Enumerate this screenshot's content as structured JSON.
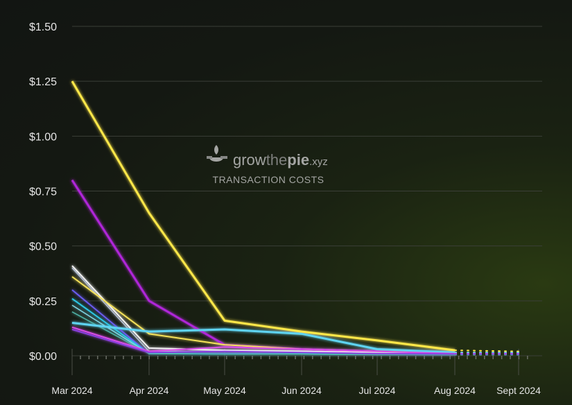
{
  "chart_data": {
    "type": "line",
    "title": "",
    "xlabel": "",
    "ylabel": "",
    "y_tick_labels": [
      "$0.00",
      "$0.25",
      "$0.50",
      "$0.75",
      "$1.00",
      "$1.25",
      "$1.50"
    ],
    "y_ticks": [
      0,
      0.25,
      0.5,
      0.75,
      1.0,
      1.25,
      1.5
    ],
    "ylim": [
      0,
      1.5
    ],
    "categories": [
      "Mar 2024",
      "Apr 2024",
      "May 2024",
      "Jun 2024",
      "Jul 2024",
      "Aug 2024",
      "Sept 2024"
    ],
    "grid": true,
    "series": [
      {
        "color": "#ffe84a",
        "values": [
          1.25,
          0.65,
          0.16,
          0.11,
          0.07,
          0.025,
          0.02
        ],
        "width": 3
      },
      {
        "color": "#b026d9",
        "values": [
          0.8,
          0.25,
          0.05,
          0.03,
          0.02,
          0.012,
          0.012
        ],
        "width": 3
      },
      {
        "color": "#f2f2f2",
        "values": [
          0.41,
          0.035,
          0.025,
          0.02,
          0.015,
          0.01,
          0.01
        ],
        "width": 2
      },
      {
        "color": "#b8c4d9",
        "values": [
          0.4,
          0.02,
          0.02,
          0.015,
          0.012,
          0.01,
          0.01
        ],
        "width": 1.5
      },
      {
        "color": "#f5e25a",
        "values": [
          0.36,
          0.1,
          0.05,
          0.03,
          0.02,
          0.015,
          0.015
        ],
        "width": 2
      },
      {
        "color": "#6b5cf0",
        "values": [
          0.3,
          0.01,
          0.01,
          0.008,
          0.008,
          0.006,
          0.006
        ],
        "width": 2
      },
      {
        "color": "#2ec7e6",
        "values": [
          0.26,
          0.01,
          0.008,
          0.008,
          0.006,
          0.006,
          0.006
        ],
        "width": 2
      },
      {
        "color": "#7fd9e8",
        "values": [
          0.23,
          0.01,
          0.008,
          0.007,
          0.006,
          0.005,
          0.005
        ],
        "width": 1.5
      },
      {
        "color": "#4fb3a8",
        "values": [
          0.2,
          0.01,
          0.008,
          0.007,
          0.006,
          0.005,
          0.005
        ],
        "width": 1.5
      },
      {
        "color": "#5fd4f2",
        "values": [
          0.15,
          0.11,
          0.12,
          0.1,
          0.03,
          0.015,
          0.015
        ],
        "width": 3
      },
      {
        "color": "#d94de8",
        "values": [
          0.13,
          0.02,
          0.04,
          0.03,
          0.02,
          0.01,
          0.01
        ],
        "width": 2
      },
      {
        "color": "#8a3fe0",
        "values": [
          0.12,
          0.015,
          0.02,
          0.015,
          0.01,
          0.008,
          0.008
        ],
        "width": 2
      }
    ]
  },
  "watermark": {
    "brand_grow": "grow",
    "brand_the": "the",
    "brand_pie": "pie",
    "brand_xyz": ".xyz",
    "subtitle": "TRANSACTION COSTS"
  }
}
